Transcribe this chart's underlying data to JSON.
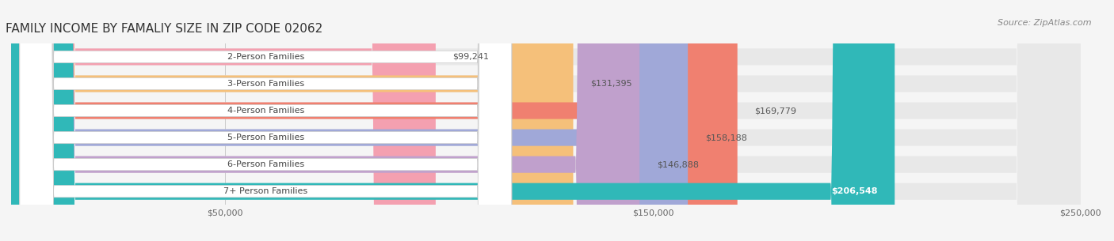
{
  "title": "FAMILY INCOME BY FAMALIY SIZE IN ZIP CODE 02062",
  "source": "Source: ZipAtlas.com",
  "categories": [
    "2-Person Families",
    "3-Person Families",
    "4-Person Families",
    "5-Person Families",
    "6-Person Families",
    "7+ Person Families"
  ],
  "values": [
    99241,
    131395,
    169779,
    158188,
    146888,
    206548
  ],
  "bar_colors": [
    "#f4a0b0",
    "#f5c07a",
    "#f08070",
    "#a0a8d8",
    "#c0a0cc",
    "#30b8b8"
  ],
  "label_colors": [
    "#555555",
    "#555555",
    "#555555",
    "#555555",
    "#555555",
    "#ffffff"
  ],
  "value_labels": [
    "$99,241",
    "$131,395",
    "$169,779",
    "$158,188",
    "$146,888",
    "$206,548"
  ],
  "xlim": [
    0,
    250000
  ],
  "xticks": [
    0,
    50000,
    150000,
    250000
  ],
  "xtick_labels": [
    "",
    "$50,000",
    "$150,000",
    "$250,000"
  ],
  "bg_color": "#f5f5f5",
  "bar_bg_color": "#e8e8e8",
  "title_fontsize": 11,
  "source_fontsize": 8,
  "bar_label_fontsize": 8,
  "value_fontsize": 8
}
